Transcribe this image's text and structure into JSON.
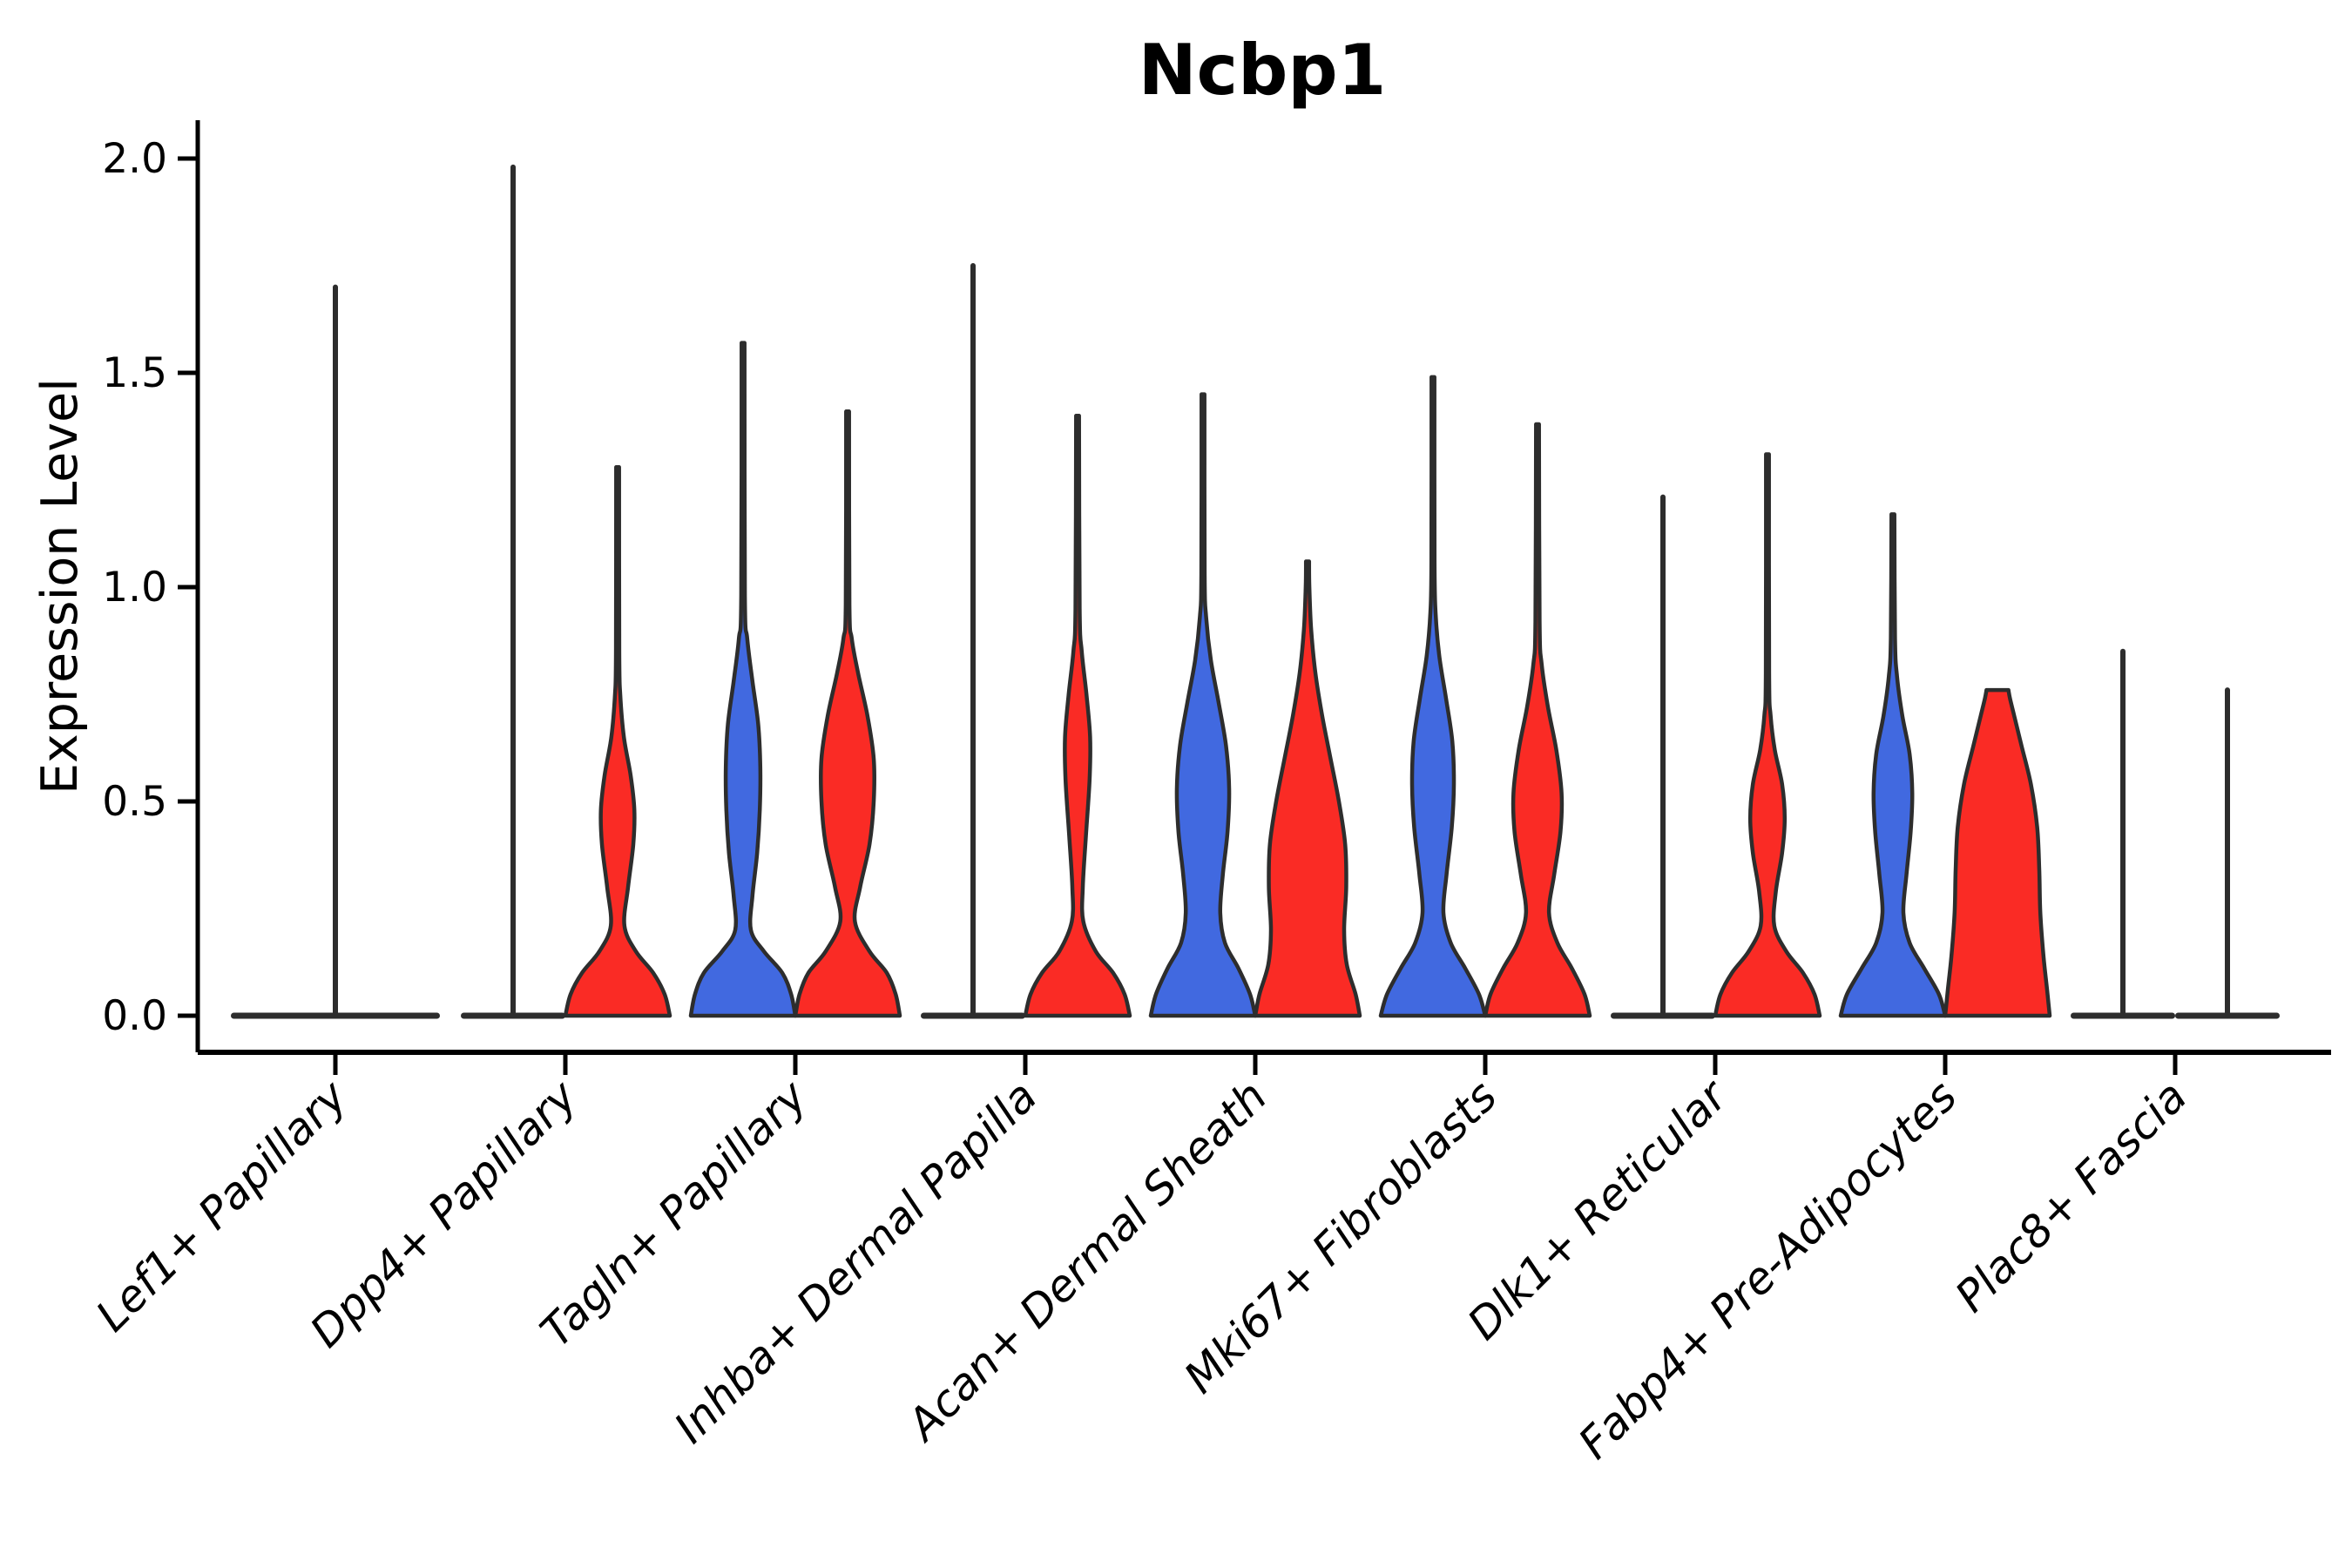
{
  "title": "Ncbp1",
  "y_axis": {
    "label": "Expression Level",
    "tick_labels": [
      "0.0",
      "0.5",
      "1.0",
      "1.5",
      "2.0"
    ],
    "tick_values": [
      0.0,
      0.5,
      1.0,
      1.5,
      2.0
    ]
  },
  "palette": {
    "blue": "#4169E0",
    "red": "#FA2B25",
    "outline": "#2D2D2D",
    "axis": "#000000"
  },
  "chart_data": {
    "type": "violin",
    "title": "Ncbp1",
    "xlabel": "",
    "ylabel": "Expression Level",
    "ylim": [
      0,
      2.05
    ],
    "yticks": [
      0.0,
      0.5,
      1.0,
      1.5,
      2.0
    ],
    "legend": "none",
    "grid": false,
    "categories": [
      "Lef1+ Papillary",
      "Dpp4+ Papillary",
      "Tagln+ Papillary",
      "Inhba+ Dermal Papilla",
      "Acan+ Dermal Sheath",
      "Mki67+ Fibroblasts",
      "Dlk1+ Reticular",
      "Fabp4+ Pre-Adipocytes",
      "Plac8+ Fascia"
    ],
    "series": [
      {
        "name": "blue",
        "color": "#4169E0"
      },
      {
        "name": "red",
        "color": "#FA2B25"
      }
    ],
    "groups": [
      {
        "category": "Lef1+ Papillary",
        "violins": [
          {
            "series": "unspecified",
            "position": "center",
            "width": "full",
            "collapsed": true,
            "max_expression": 1.7
          }
        ]
      },
      {
        "category": "Dpp4+ Papillary",
        "violins": [
          {
            "series": "blue",
            "position": "left",
            "collapsed": true,
            "max_expression": 1.98
          },
          {
            "series": "red",
            "position": "right",
            "collapsed": false,
            "max_expression": 1.28,
            "profile": [
              [
                0,
                1.0
              ],
              [
                0.05,
                0.9
              ],
              [
                0.1,
                0.68
              ],
              [
                0.15,
                0.35
              ],
              [
                0.21,
                0.13
              ],
              [
                0.3,
                0.2
              ],
              [
                0.4,
                0.3
              ],
              [
                0.48,
                0.32
              ],
              [
                0.56,
                0.25
              ],
              [
                0.65,
                0.12
              ],
              [
                0.75,
                0.05
              ],
              [
                0.85,
                0.032
              ],
              [
                1.28,
                0.028
              ]
            ]
          }
        ]
      },
      {
        "category": "Tagln+ Papillary",
        "violins": [
          {
            "series": "blue",
            "position": "left",
            "collapsed": false,
            "max_expression": 1.57,
            "profile": [
              [
                0,
                1.0
              ],
              [
                0.05,
                0.92
              ],
              [
                0.1,
                0.75
              ],
              [
                0.15,
                0.4
              ],
              [
                0.2,
                0.15
              ],
              [
                0.28,
                0.18
              ],
              [
                0.38,
                0.27
              ],
              [
                0.48,
                0.32
              ],
              [
                0.58,
                0.33
              ],
              [
                0.68,
                0.29
              ],
              [
                0.78,
                0.18
              ],
              [
                0.88,
                0.08
              ],
              [
                0.98,
                0.035
              ],
              [
                1.57,
                0.028
              ]
            ]
          },
          {
            "series": "red",
            "position": "right",
            "collapsed": false,
            "max_expression": 1.41,
            "profile": [
              [
                0,
                1.0
              ],
              [
                0.05,
                0.92
              ],
              [
                0.1,
                0.75
              ],
              [
                0.15,
                0.42
              ],
              [
                0.22,
                0.14
              ],
              [
                0.3,
                0.24
              ],
              [
                0.4,
                0.42
              ],
              [
                0.5,
                0.5
              ],
              [
                0.6,
                0.5
              ],
              [
                0.7,
                0.38
              ],
              [
                0.8,
                0.2
              ],
              [
                0.88,
                0.08
              ],
              [
                0.96,
                0.035
              ],
              [
                1.41,
                0.028
              ]
            ]
          }
        ]
      },
      {
        "category": "Inhba+ Dermal Papilla",
        "violins": [
          {
            "series": "blue",
            "position": "left",
            "collapsed": true,
            "max_expression": 1.75
          },
          {
            "series": "red",
            "position": "right",
            "collapsed": false,
            "max_expression": 1.4,
            "profile": [
              [
                0,
                1.0
              ],
              [
                0.05,
                0.9
              ],
              [
                0.1,
                0.68
              ],
              [
                0.15,
                0.35
              ],
              [
                0.22,
                0.11
              ],
              [
                0.3,
                0.1
              ],
              [
                0.42,
                0.16
              ],
              [
                0.55,
                0.23
              ],
              [
                0.65,
                0.24
              ],
              [
                0.75,
                0.17
              ],
              [
                0.85,
                0.08
              ],
              [
                0.95,
                0.04
              ],
              [
                1.4,
                0.028
              ]
            ]
          }
        ]
      },
      {
        "category": "Acan+ Dermal Sheath",
        "violins": [
          {
            "series": "blue",
            "position": "left",
            "collapsed": false,
            "max_expression": 1.45,
            "profile": [
              [
                0,
                1.0
              ],
              [
                0.05,
                0.9
              ],
              [
                0.11,
                0.68
              ],
              [
                0.17,
                0.42
              ],
              [
                0.24,
                0.33
              ],
              [
                0.33,
                0.38
              ],
              [
                0.43,
                0.47
              ],
              [
                0.53,
                0.5
              ],
              [
                0.63,
                0.44
              ],
              [
                0.73,
                0.3
              ],
              [
                0.83,
                0.15
              ],
              [
                0.93,
                0.06
              ],
              [
                1.03,
                0.032
              ],
              [
                1.45,
                0.028
              ]
            ]
          },
          {
            "series": "red",
            "position": "right",
            "collapsed": false,
            "max_expression": 1.06,
            "profile": [
              [
                0,
                1.0
              ],
              [
                0.05,
                0.92
              ],
              [
                0.12,
                0.75
              ],
              [
                0.2,
                0.7
              ],
              [
                0.3,
                0.74
              ],
              [
                0.4,
                0.72
              ],
              [
                0.5,
                0.6
              ],
              [
                0.6,
                0.44
              ],
              [
                0.7,
                0.28
              ],
              [
                0.8,
                0.15
              ],
              [
                0.9,
                0.07
              ],
              [
                1.0,
                0.035
              ],
              [
                1.06,
                0.03
              ]
            ]
          }
        ]
      },
      {
        "category": "Mki67+ Fibroblasts",
        "violins": [
          {
            "series": "blue",
            "position": "left",
            "collapsed": false,
            "max_expression": 1.49,
            "profile": [
              [
                0,
                1.0
              ],
              [
                0.05,
                0.88
              ],
              [
                0.11,
                0.62
              ],
              [
                0.17,
                0.34
              ],
              [
                0.24,
                0.2
              ],
              [
                0.33,
                0.26
              ],
              [
                0.44,
                0.36
              ],
              [
                0.54,
                0.4
              ],
              [
                0.64,
                0.37
              ],
              [
                0.74,
                0.25
              ],
              [
                0.84,
                0.12
              ],
              [
                0.94,
                0.05
              ],
              [
                1.06,
                0.03
              ],
              [
                1.49,
                0.028
              ]
            ]
          },
          {
            "series": "red",
            "position": "right",
            "collapsed": false,
            "max_expression": 1.38,
            "profile": [
              [
                0,
                1.0
              ],
              [
                0.05,
                0.9
              ],
              [
                0.11,
                0.66
              ],
              [
                0.17,
                0.38
              ],
              [
                0.24,
                0.22
              ],
              [
                0.33,
                0.32
              ],
              [
                0.43,
                0.44
              ],
              [
                0.52,
                0.46
              ],
              [
                0.62,
                0.36
              ],
              [
                0.72,
                0.2
              ],
              [
                0.82,
                0.08
              ],
              [
                0.92,
                0.04
              ],
              [
                1.38,
                0.028
              ]
            ]
          }
        ]
      },
      {
        "category": "Dlk1+ Reticular",
        "violins": [
          {
            "series": "blue",
            "position": "left",
            "collapsed": true,
            "max_expression": 1.21
          },
          {
            "series": "red",
            "position": "right",
            "collapsed": false,
            "max_expression": 1.31,
            "profile": [
              [
                0,
                1.0
              ],
              [
                0.05,
                0.9
              ],
              [
                0.1,
                0.68
              ],
              [
                0.15,
                0.36
              ],
              [
                0.21,
                0.13
              ],
              [
                0.29,
                0.16
              ],
              [
                0.38,
                0.28
              ],
              [
                0.46,
                0.33
              ],
              [
                0.54,
                0.28
              ],
              [
                0.62,
                0.14
              ],
              [
                0.7,
                0.06
              ],
              [
                0.8,
                0.032
              ],
              [
                1.31,
                0.028
              ]
            ]
          }
        ]
      },
      {
        "category": "Fabp4+ Pre-Adipocytes",
        "violins": [
          {
            "series": "blue",
            "position": "left",
            "collapsed": false,
            "max_expression": 1.17,
            "profile": [
              [
                0,
                1.0
              ],
              [
                0.05,
                0.88
              ],
              [
                0.11,
                0.6
              ],
              [
                0.17,
                0.32
              ],
              [
                0.24,
                0.2
              ],
              [
                0.33,
                0.26
              ],
              [
                0.43,
                0.34
              ],
              [
                0.52,
                0.37
              ],
              [
                0.61,
                0.32
              ],
              [
                0.7,
                0.18
              ],
              [
                0.79,
                0.08
              ],
              [
                0.88,
                0.04
              ],
              [
                1.17,
                0.028
              ]
            ]
          },
          {
            "series": "red",
            "position": "right",
            "collapsed": false,
            "max_expression": 0.76,
            "flat_top": true,
            "profile": [
              [
                0,
                1.0
              ],
              [
                0.06,
                0.95
              ],
              [
                0.14,
                0.88
              ],
              [
                0.24,
                0.82
              ],
              [
                0.34,
                0.8
              ],
              [
                0.44,
                0.76
              ],
              [
                0.54,
                0.64
              ],
              [
                0.63,
                0.46
              ],
              [
                0.7,
                0.32
              ],
              [
                0.74,
                0.24
              ],
              [
                0.76,
                0.21
              ]
            ]
          }
        ]
      },
      {
        "category": "Plac8+ Fascia",
        "violins": [
          {
            "series": "blue",
            "position": "left",
            "collapsed": true,
            "max_expression": 0.85
          },
          {
            "series": "red",
            "position": "right",
            "collapsed": true,
            "max_expression": 0.76
          }
        ]
      }
    ]
  }
}
